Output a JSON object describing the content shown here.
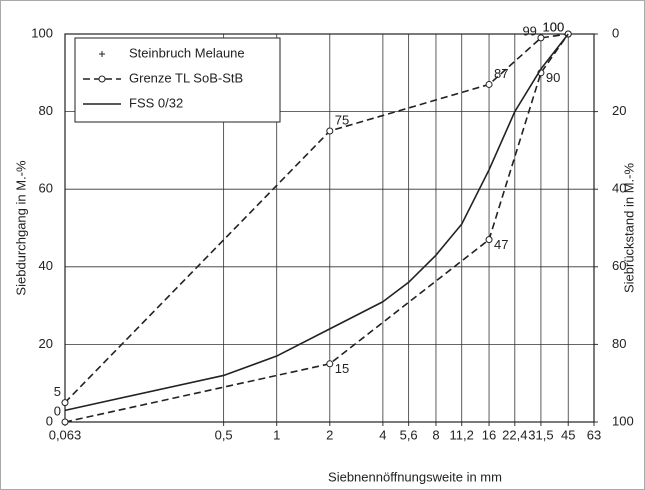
{
  "chart_data": {
    "type": "line",
    "xlabel": "Siebnennöffnungsweite in mm",
    "ylabel": "Siebdurchgang  in M.-%",
    "y2label": "Siebrückstand  in M.-%",
    "log_x": true,
    "grid": true,
    "legend": "upper left",
    "xlim": [
      0.063,
      63
    ],
    "xticks": [
      {
        "value": 0.063,
        "label": "0,063"
      },
      {
        "value": 0.5,
        "label": "0,5"
      },
      1,
      2,
      4,
      {
        "value": 5.6,
        "label": "5,6"
      },
      8,
      {
        "value": 11.2,
        "label": "11,2"
      },
      16,
      {
        "value": 22.4,
        "label": "22,4"
      },
      {
        "value": 31.5,
        "label": "31,5"
      },
      45,
      63
    ],
    "ylim": [
      0,
      100
    ],
    "yticks": [
      0,
      20,
      40,
      60,
      80,
      100
    ],
    "y2lim": [
      100,
      0
    ],
    "y2ticks": [
      0,
      20,
      40,
      60,
      80,
      100
    ],
    "series": [
      {
        "name": "Steinbruch Melaune",
        "color": "#222222",
        "style": "marker-plus",
        "x": [
          0.063,
          45
        ],
        "values": [
          null,
          null
        ]
      },
      {
        "name": "Grenze TL SoB-StB",
        "color": "#222222",
        "style": "dashed-circle",
        "x": [
          0.063,
          2,
          16,
          31.5,
          45
        ],
        "values": [
          0,
          15,
          47,
          90,
          100
        ]
      },
      {
        "color": "#222222",
        "style": "dashed-circle",
        "x": [
          0.063,
          2,
          16,
          31.5,
          45
        ],
        "values": [
          5,
          75,
          87,
          99,
          100
        ]
      },
      {
        "name": "FSS 0/32",
        "color": "#222222",
        "style": "solid",
        "x": [
          0.063,
          0.5,
          1,
          2,
          4,
          5.6,
          8,
          11.2,
          16,
          22.4,
          31.5,
          45
        ],
        "values": [
          3,
          12,
          17,
          24,
          31,
          36,
          43,
          51,
          65,
          80,
          91,
          100
        ]
      }
    ]
  }
}
